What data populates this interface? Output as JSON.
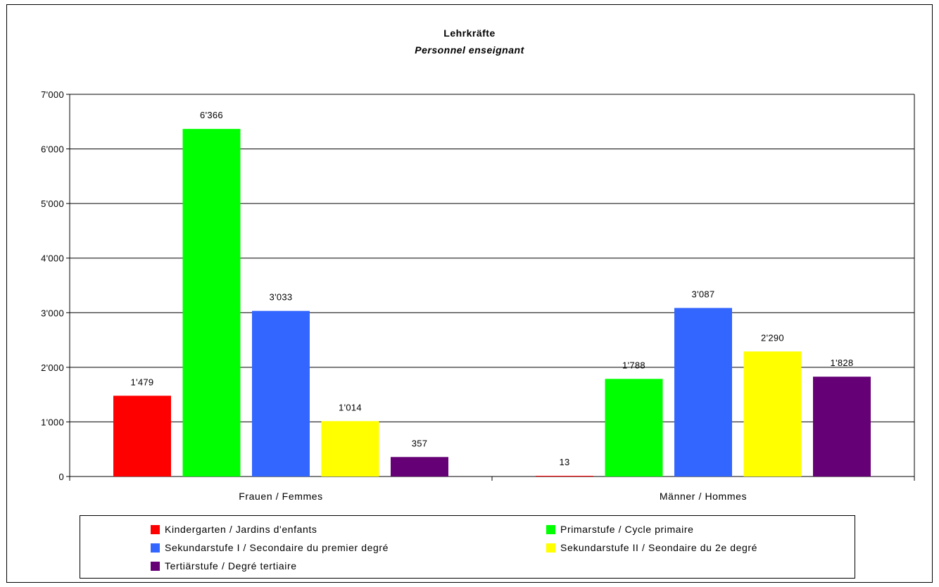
{
  "chart_data": {
    "type": "bar",
    "title": "Lehrkräfte",
    "subtitle": "Personnel enseignant",
    "categories": [
      "Frauen / Femmes",
      "Männer / Hommes"
    ],
    "series": [
      {
        "name": "Kindergarten / Jardins d'enfants",
        "color": "#ff0000",
        "values": [
          1479,
          13
        ],
        "labels": [
          "1'479",
          "13"
        ]
      },
      {
        "name": "Primarstufe / Cycle primaire",
        "color": "#00ff00",
        "values": [
          6366,
          1788
        ],
        "labels": [
          "6'366",
          "1'788"
        ]
      },
      {
        "name": "Sekundarstufe I / Secondaire du premier degré",
        "color": "#3366ff",
        "values": [
          3033,
          3087
        ],
        "labels": [
          "3'033",
          "3'087"
        ]
      },
      {
        "name": "Sekundarstufe II / Seondaire du 2e degré",
        "color": "#ffff00",
        "values": [
          1014,
          2290
        ],
        "labels": [
          "1'014",
          "2'290"
        ]
      },
      {
        "name": "Tertiärstufe / Degré tertiaire",
        "color": "#660077",
        "values": [
          357,
          1828
        ],
        "labels": [
          "357",
          "1'828"
        ]
      }
    ],
    "ylim": [
      0,
      7000
    ],
    "yticks": [
      0,
      1000,
      2000,
      3000,
      4000,
      5000,
      6000,
      7000
    ],
    "ytick_labels": [
      "0",
      "1'000",
      "2'000",
      "3'000",
      "4'000",
      "5'000",
      "6'000",
      "7'000"
    ],
    "grid": true,
    "legend_position": "bottom"
  }
}
